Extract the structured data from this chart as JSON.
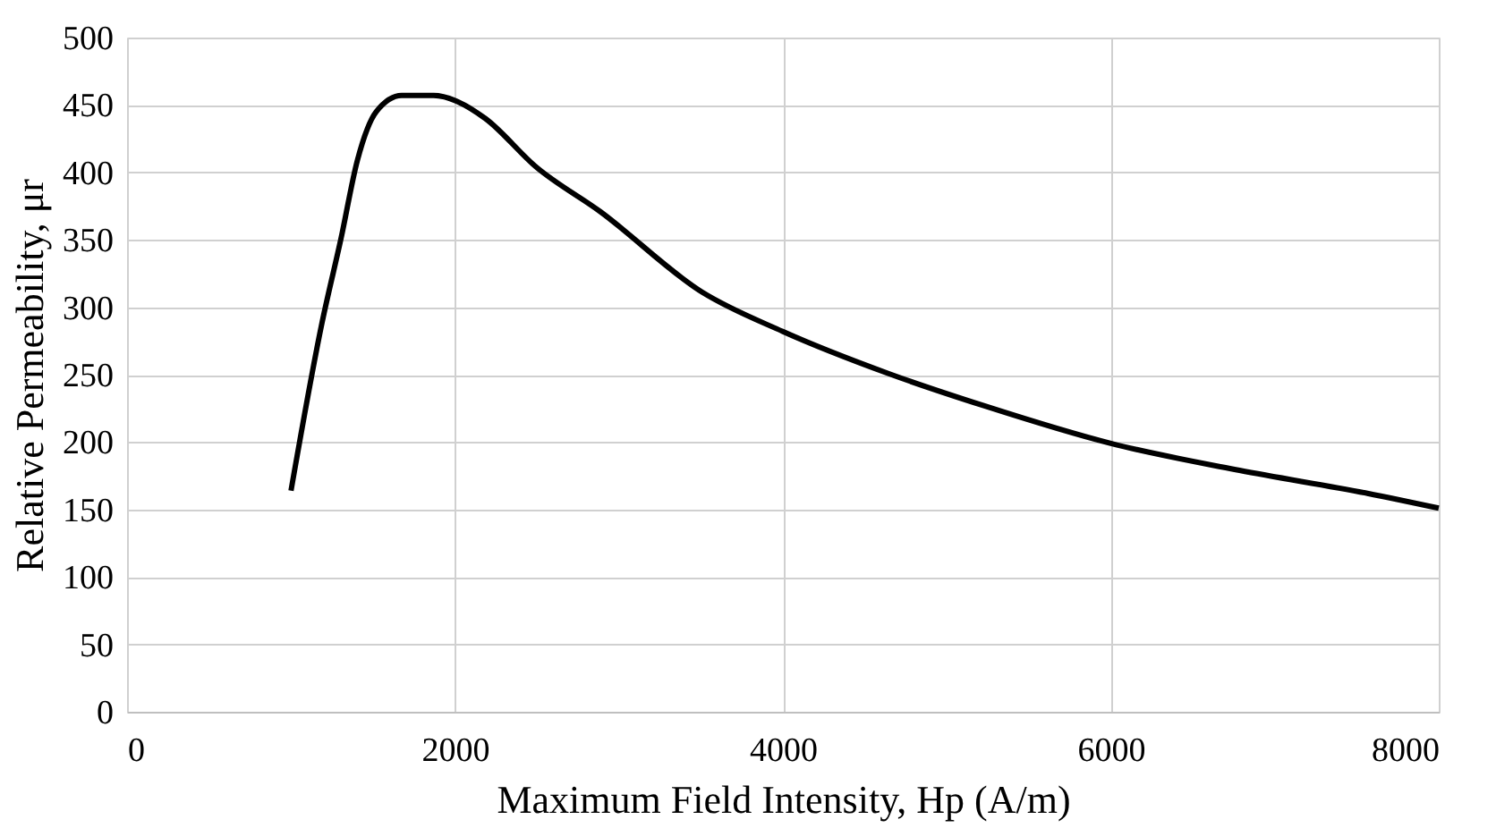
{
  "chart_data": {
    "type": "line",
    "xlabel": "Maximum Field Intensity, Hp (A/m)",
    "ylabel": "Relative Permeability, μr",
    "x": [
      1000,
      1190,
      1305,
      1405,
      1520,
      1675,
      1870,
      2025,
      2185,
      2495,
      2885,
      3510,
      4000,
      4640,
      5225,
      6000,
      6785,
      7565,
      8000
    ],
    "series": [
      {
        "color": "#000000",
        "values": [
          164,
          289,
          351,
          409,
          445,
          457,
          457,
          452,
          440,
          404,
          371,
          311,
          282,
          251,
          227,
          199,
          179,
          162,
          151
        ]
      }
    ],
    "xlim": [
      0,
      8000
    ],
    "xticks": [
      0,
      2000,
      4000,
      6000,
      8000
    ],
    "ylim": [
      0,
      500
    ],
    "yticks": [
      0,
      50,
      100,
      150,
      200,
      250,
      300,
      350,
      400,
      450,
      500
    ],
    "grid": true,
    "marker": "none",
    "line_style": "solid"
  }
}
